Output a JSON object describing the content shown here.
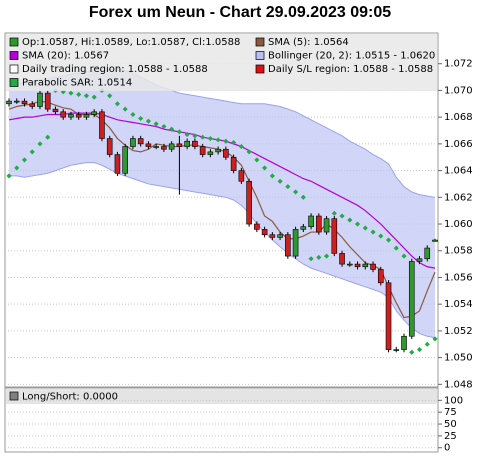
{
  "chart_data": [
    {
      "type": "candlestick",
      "title": "Forex um Neun - Chart 29.09.2023 09:05",
      "up_color": "#2e9a2e",
      "down_color": "#cc2020",
      "ylim": [
        1.0478,
        1.0743
      ],
      "yticks": [
        1.048,
        {
          "value": 1.05,
          "label": "1.050"
        },
        1.052,
        1.054,
        1.056,
        1.058,
        {
          "value": 1.06,
          "label": "1.060"
        },
        1.062,
        1.064,
        1.066,
        1.068,
        {
          "value": 1.07,
          "label": "1.070"
        },
        1.072
      ],
      "grid": true,
      "open": [
        1.069,
        1.0692,
        1.0692,
        1.069,
        1.0688,
        1.0698,
        1.0686,
        1.0684,
        1.068,
        1.0682,
        1.068,
        1.0682,
        1.0684,
        1.0664,
        1.0652,
        1.0638,
        1.0658,
        1.0664,
        1.066,
        1.0658,
        1.0658,
        1.0656,
        1.066,
        1.0658,
        1.0662,
        1.0658,
        1.0652,
        1.0654,
        1.0656,
        1.065,
        1.064,
        1.0632,
        1.06,
        1.0596,
        1.0592,
        1.059,
        1.0592,
        1.0576,
        1.0596,
        1.0598,
        1.0606,
        1.0594,
        1.0604,
        1.0578,
        1.057,
        1.057,
        1.0568,
        1.057,
        1.0566,
        1.0556,
        1.0506,
        1.0506,
        1.0516,
        1.0572,
        1.0574,
        1.0587
      ],
      "high": [
        1.0694,
        1.0694,
        1.0694,
        1.0692,
        1.07,
        1.07,
        1.0688,
        1.0686,
        1.0684,
        1.0684,
        1.0684,
        1.0686,
        1.0686,
        1.0666,
        1.0654,
        1.066,
        1.0666,
        1.0666,
        1.0662,
        1.066,
        1.066,
        1.0662,
        1.0666,
        1.0664,
        1.0664,
        1.066,
        1.0656,
        1.0658,
        1.0658,
        1.0652,
        1.0642,
        1.0634,
        1.0602,
        1.0598,
        1.0594,
        1.0594,
        1.0594,
        1.0598,
        1.06,
        1.0608,
        1.0608,
        1.0606,
        1.0606,
        1.058,
        1.0572,
        1.0572,
        1.0572,
        1.0572,
        1.0568,
        1.0558,
        1.0508,
        1.0518,
        1.0574,
        1.0576,
        1.0584,
        1.0589
      ],
      "low": [
        1.0688,
        1.069,
        1.0688,
        1.0686,
        1.0686,
        1.0684,
        1.0682,
        1.0678,
        1.0678,
        1.0678,
        1.0678,
        1.068,
        1.0662,
        1.065,
        1.0636,
        1.0636,
        1.0656,
        1.0658,
        1.0656,
        1.0656,
        1.0654,
        1.0654,
        1.0622,
        1.0656,
        1.0656,
        1.065,
        1.065,
        1.0652,
        1.0648,
        1.0638,
        1.063,
        1.0598,
        1.0594,
        1.059,
        1.0588,
        1.0588,
        1.0574,
        1.0574,
        1.0594,
        1.0596,
        1.0592,
        1.0592,
        1.0576,
        1.0568,
        1.0568,
        1.0566,
        1.0566,
        1.0564,
        1.0554,
        1.0504,
        1.0504,
        1.0504,
        1.0514,
        1.057,
        1.0572,
        1.0587
      ],
      "close": [
        1.0692,
        1.0692,
        1.069,
        1.0688,
        1.0698,
        1.0686,
        1.0684,
        1.068,
        1.0682,
        1.068,
        1.0682,
        1.0684,
        1.0664,
        1.0652,
        1.0638,
        1.0658,
        1.0664,
        1.066,
        1.0658,
        1.0658,
        1.0656,
        1.066,
        1.0658,
        1.0662,
        1.0658,
        1.0652,
        1.0654,
        1.0656,
        1.065,
        1.064,
        1.0632,
        1.06,
        1.0596,
        1.0592,
        1.059,
        1.0592,
        1.0576,
        1.0596,
        1.0598,
        1.0606,
        1.0594,
        1.0604,
        1.0578,
        1.057,
        1.057,
        1.0568,
        1.057,
        1.0566,
        1.0556,
        1.0506,
        1.0506,
        1.0516,
        1.0572,
        1.0574,
        1.0582,
        1.0588
      ],
      "candle_legend": {
        "name": "Op:1.0587, Hi:1.0589, Lo:1.0587, Cl:1.0588",
        "color": "#2e9a2e"
      },
      "band": {
        "name": "Bollinger (20, 2): 1.0515 - 1.0620",
        "color": "#b8bff5",
        "line_color": "#9aa2ee",
        "upper": [
          1.0704,
          1.0705,
          1.0706,
          1.0707,
          1.0708,
          1.0709,
          1.071,
          1.0711,
          1.0712,
          1.0713,
          1.0714,
          1.0715,
          1.0716,
          1.0716,
          1.0716,
          1.0715,
          1.0713,
          1.071,
          1.0707,
          1.0704,
          1.0702,
          1.07,
          1.0698,
          1.0697,
          1.0696,
          1.0695,
          1.0694,
          1.0693,
          1.0692,
          1.0691,
          1.069,
          1.069,
          1.069,
          1.069,
          1.0689,
          1.0688,
          1.0686,
          1.0684,
          1.0681,
          1.0678,
          1.0675,
          1.0672,
          1.0669,
          1.0666,
          1.0662,
          1.0659,
          1.0656,
          1.0652,
          1.0649,
          1.0645,
          1.0635,
          1.0628,
          1.0624,
          1.0622,
          1.0621,
          1.062
        ],
        "lower": [
          1.0636,
          1.0636,
          1.0635,
          1.0636,
          1.0637,
          1.0638,
          1.064,
          1.0642,
          1.0644,
          1.0645,
          1.0646,
          1.0646,
          1.0644,
          1.0641,
          1.0638,
          1.0636,
          1.0634,
          1.0632,
          1.063,
          1.0629,
          1.0628,
          1.0627,
          1.0626,
          1.0625,
          1.0624,
          1.0623,
          1.0622,
          1.0621,
          1.062,
          1.0618,
          1.0614,
          1.0608,
          1.06,
          1.0594,
          1.0588,
          1.0583,
          1.0578,
          1.0574,
          1.057,
          1.0567,
          1.0565,
          1.0563,
          1.0561,
          1.0559,
          1.0557,
          1.0555,
          1.0553,
          1.0551,
          1.0549,
          1.0545,
          1.0535,
          1.0528,
          1.0522,
          1.0518,
          1.0516,
          1.0515
        ]
      },
      "series": [
        {
          "name": "SMA (5): 1.0564",
          "color": "#8b5a3c",
          "values": [
            1.0686,
            1.0688,
            1.0689,
            1.069,
            1.0692,
            1.0691,
            1.0689,
            1.0687,
            1.0686,
            1.0682,
            1.0682,
            1.0682,
            1.0678,
            1.0672,
            1.0664,
            1.0659,
            1.0655,
            1.0654,
            1.0656,
            1.066,
            1.0659,
            1.0658,
            1.0658,
            1.0659,
            1.0659,
            1.0658,
            1.0657,
            1.0656,
            1.0654,
            1.065,
            1.0644,
            1.0632,
            1.062,
            1.0606,
            1.0602,
            1.0594,
            1.0589,
            1.0589,
            1.0591,
            1.0594,
            1.0594,
            1.06,
            1.0596,
            1.059,
            1.0583,
            1.0577,
            1.0571,
            1.0569,
            1.0566,
            1.0553,
            1.0541,
            1.053,
            1.0531,
            1.0535,
            1.055,
            1.0564
          ]
        },
        {
          "name": "SMA (20): 1.0567",
          "color": "#b400d8",
          "values": [
            1.0678,
            1.0679,
            1.068,
            1.068,
            1.0681,
            1.0682,
            1.0682,
            1.0682,
            1.0683,
            1.0683,
            1.0683,
            1.0683,
            1.0682,
            1.068,
            1.0678,
            1.0677,
            1.0676,
            1.0675,
            1.0674,
            1.0673,
            1.0671,
            1.067,
            1.0669,
            1.0668,
            1.0667,
            1.0665,
            1.0664,
            1.0663,
            1.0662,
            1.066,
            1.0658,
            1.0655,
            1.0652,
            1.0649,
            1.0646,
            1.0643,
            1.064,
            1.0637,
            1.0634,
            1.0632,
            1.0629,
            1.0626,
            1.0623,
            1.062,
            1.0617,
            1.0614,
            1.061,
            1.0605,
            1.06,
            1.0594,
            1.0588,
            1.0582,
            1.0576,
            1.0571,
            1.0568,
            1.0567
          ]
        }
      ],
      "regions": [
        {
          "name": "Daily trading region: 1.0588 - 1.0588",
          "color": "#ffffff"
        },
        {
          "name": "Daily S/L region: 1.0588 - 1.0588",
          "color": "#e01010"
        }
      ],
      "sar": {
        "name": "Parabolic SAR: 1.0514",
        "color": "#22aa44",
        "values": [
          1.0636,
          1.0642,
          1.0648,
          1.0654,
          1.066,
          1.0665,
          1.07,
          1.0699,
          1.0698,
          1.0697,
          1.0696,
          1.0695,
          1.07,
          1.0696,
          1.069,
          1.0686,
          1.0682,
          1.0679,
          1.0677,
          1.0675,
          1.0673,
          1.0671,
          1.0669,
          1.0667,
          1.0666,
          1.0665,
          1.0664,
          1.0663,
          1.0662,
          1.0661,
          1.0658,
          1.0654,
          1.0648,
          1.0642,
          1.0636,
          1.0632,
          1.0628,
          1.0624,
          1.062,
          1.0574,
          1.0575,
          1.0576,
          1.0608,
          1.0606,
          1.0603,
          1.06,
          1.0597,
          1.0594,
          1.0591,
          1.0588,
          1.0582,
          1.0576,
          1.0504,
          1.0506,
          1.051,
          1.0514
        ]
      }
    },
    {
      "type": "line",
      "ylim": [
        -9,
        126
      ],
      "yticks": [
        0,
        25,
        50,
        75,
        100
      ],
      "grid": true,
      "series": [
        {
          "name": "Long/Short: 0.0000",
          "color": "#808080",
          "values": []
        }
      ]
    }
  ]
}
